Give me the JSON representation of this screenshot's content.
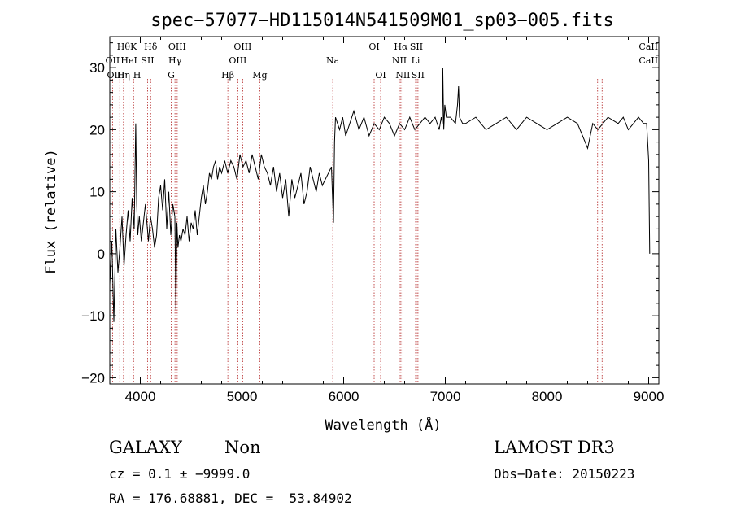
{
  "chart_data": {
    "type": "line",
    "title": "spec−57077−HD115014N541509M01_sp03−005.fits",
    "xlabel": "Wavelength (Å)",
    "ylabel": "Flux (relative)",
    "xlim": [
      3700,
      9100
    ],
    "ylim": [
      -21,
      35
    ],
    "xticks": [
      4000,
      5000,
      6000,
      7000,
      8000,
      9000
    ],
    "yticks": [
      -20,
      -10,
      0,
      10,
      20,
      30
    ],
    "ytick_labels": [
      "−20",
      "−10",
      "0",
      "10",
      "20",
      "30"
    ],
    "line_color": "#000000",
    "marker_color": "#b22222",
    "grid": false,
    "series": [
      {
        "x": [
          3700,
          3720,
          3740,
          3760,
          3780,
          3800,
          3820,
          3840,
          3860,
          3880,
          3900,
          3920,
          3940,
          3955,
          3965,
          3975,
          3990,
          4010,
          4030,
          4050,
          4080,
          4100,
          4120,
          4140,
          4160,
          4180,
          4200,
          4220,
          4240,
          4260,
          4280,
          4300,
          4320,
          4340,
          4350,
          4360,
          4370,
          4385,
          4400,
          4420,
          4440,
          4460,
          4480,
          4500,
          4520,
          4540,
          4560,
          4580,
          4600,
          4620,
          4640,
          4660,
          4680,
          4700,
          4720,
          4740,
          4760,
          4780,
          4800,
          4830,
          4860,
          4890,
          4920,
          4950,
          4980,
          5010,
          5040,
          5070,
          5100,
          5130,
          5160,
          5190,
          5220,
          5250,
          5280,
          5310,
          5340,
          5370,
          5400,
          5430,
          5460,
          5490,
          5520,
          5550,
          5580,
          5610,
          5640,
          5670,
          5700,
          5730,
          5760,
          5790,
          5820,
          5850,
          5880,
          5900,
          5910,
          5920,
          5940,
          5960,
          5990,
          6020,
          6060,
          6100,
          6150,
          6200,
          6250,
          6300,
          6350,
          6400,
          6450,
          6500,
          6550,
          6600,
          6650,
          6700,
          6750,
          6800,
          6850,
          6900,
          6940,
          6960,
          6970,
          6975,
          6985,
          6995,
          7010,
          7050,
          7100,
          7120,
          7130,
          7140,
          7170,
          7200,
          7300,
          7400,
          7500,
          7600,
          7700,
          7800,
          7900,
          8000,
          8100,
          8200,
          8300,
          8350,
          8400,
          8450,
          8500,
          8600,
          8700,
          8750,
          8800,
          8850,
          8900,
          8950,
          8980,
          9000,
          9010
        ],
        "y": [
          -5,
          2,
          -11,
          4,
          -3,
          1,
          6,
          -2,
          3,
          7,
          2,
          9,
          4,
          21,
          8,
          3,
          6,
          2,
          5,
          8,
          2,
          6,
          4,
          1,
          3,
          9,
          11,
          7,
          12,
          4,
          10,
          3,
          8,
          6,
          -9,
          5,
          1,
          3,
          2,
          4,
          3,
          6,
          2,
          5,
          4,
          7,
          3,
          6,
          9,
          11,
          8,
          10,
          13,
          12,
          14,
          15,
          12,
          14,
          13,
          15,
          13,
          15,
          14,
          12,
          16,
          14,
          15,
          13,
          16,
          14,
          12,
          16,
          14,
          13,
          11,
          14,
          10,
          13,
          9,
          12,
          6,
          12,
          9,
          11,
          13,
          8,
          10,
          14,
          12,
          10,
          13,
          11,
          12,
          13,
          14,
          5,
          18,
          22,
          21,
          20,
          22,
          19,
          21,
          23,
          20,
          22,
          19,
          21,
          20,
          22,
          21,
          19,
          21,
          20,
          22,
          20,
          21,
          22,
          21,
          22,
          20,
          22,
          21,
          30,
          20,
          24,
          22,
          22,
          21,
          24,
          27,
          22,
          21,
          21,
          22,
          20,
          21,
          22,
          20,
          22,
          21,
          20,
          21,
          22,
          21,
          19,
          17,
          21,
          20,
          22,
          21,
          22,
          20,
          21,
          22,
          21,
          21,
          15,
          0
        ]
      }
    ],
    "lines": [
      {
        "label": "OII",
        "x": 3727
      },
      {
        "label": "Hθ",
        "x": 3798
      },
      {
        "label": "Hη",
        "x": 3835
      },
      {
        "label": "HeI",
        "x": 3889
      },
      {
        "label": "K",
        "x": 3934
      },
      {
        "label": "H",
        "x": 3968
      },
      {
        "label": "Hδ",
        "x": 4102
      },
      {
        "label": "SII",
        "x": 4072
      },
      {
        "label": "G",
        "x": 4304
      },
      {
        "label": "Hγ",
        "x": 4341
      },
      {
        "label": "OIII",
        "x": 4363
      },
      {
        "label": "Hβ",
        "x": 4861
      },
      {
        "label": "OIII",
        "x": 4959
      },
      {
        "label": "OIII",
        "x": 5007
      },
      {
        "label": "Mg",
        "x": 5175
      },
      {
        "label": "Na",
        "x": 5893
      },
      {
        "label": "OI",
        "x": 6300
      },
      {
        "label": "OI",
        "x": 6364
      },
      {
        "label": "NII",
        "x": 6548
      },
      {
        "label": "Hα",
        "x": 6563
      },
      {
        "label": "NII",
        "x": 6583
      },
      {
        "label": "Li",
        "x": 6708
      },
      {
        "label": "SII",
        "x": 6716
      },
      {
        "label": "SII",
        "x": 6731
      },
      {
        "label": "CaII",
        "x": 8498
      },
      {
        "label": "CaII",
        "x": 8542
      }
    ],
    "label_rows": [
      [
        {
          "text": "Hθ",
          "x": 3835
        },
        {
          "text": "K",
          "x": 3934
        },
        {
          "text": "Hδ",
          "x": 4102
        },
        {
          "text": "OIII",
          "x": 4363
        },
        {
          "text": "OIII",
          "x": 5007
        },
        {
          "text": "OI",
          "x": 6300
        },
        {
          "text": "Hα",
          "x": 6563
        },
        {
          "text": "SII",
          "x": 6716
        },
        {
          "text": "CaII",
          "x": 8998
        }
      ],
      [
        {
          "text": "OII",
          "x": 3727
        },
        {
          "text": "HeI",
          "x": 3889
        },
        {
          "text": "SII",
          "x": 4072
        },
        {
          "text": "Hγ",
          "x": 4341
        },
        {
          "text": "OIII",
          "x": 4959
        },
        {
          "text": "Na",
          "x": 5893
        },
        {
          "text": "NII",
          "x": 6548
        },
        {
          "text": "Li",
          "x": 6708
        },
        {
          "text": "CaII",
          "x": 8998
        }
      ],
      [
        {
          "text": "OIII",
          "x": 3760
        },
        {
          "text": "Hη",
          "x": 3835
        },
        {
          "text": "H",
          "x": 3968
        },
        {
          "text": "G",
          "x": 4304
        },
        {
          "text": "Hβ",
          "x": 4861
        },
        {
          "text": "Mg",
          "x": 5175
        },
        {
          "text": "OI",
          "x": 6364
        },
        {
          "text": "NII",
          "x": 6583
        },
        {
          "text": "SII",
          "x": 6731
        }
      ]
    ]
  },
  "info": {
    "object_class": "GALAXY",
    "subclass": "Non",
    "survey": "LAMOST DR3",
    "cz": "cz = 0.1 ± −9999.0",
    "obs_date": "Obs−Date: 20150223",
    "coords": "RA = 176.68881, DEC =  53.84902"
  }
}
